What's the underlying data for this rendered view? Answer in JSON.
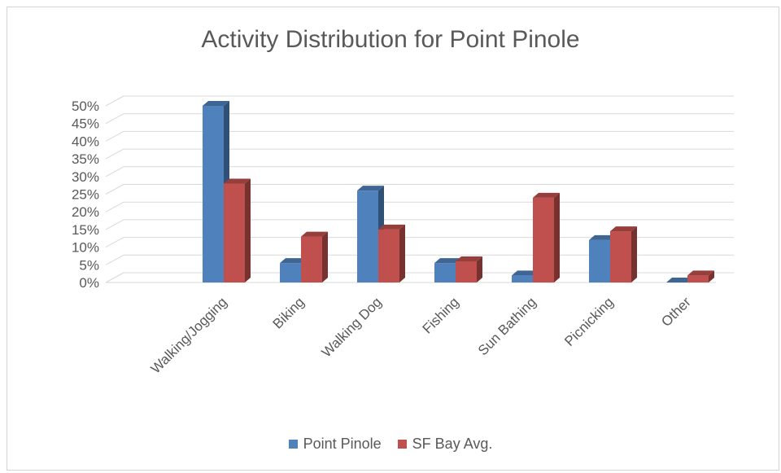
{
  "chart_data": {
    "type": "bar",
    "title": "Activity Distribution for Point Pinole",
    "categories": [
      "Walking/Jogging",
      "Biking",
      "Walking Dog",
      "Fishing",
      "Sun Bathing",
      "Picnicking",
      "Other"
    ],
    "series": [
      {
        "name": "Point Pinole",
        "values": [
          50,
          5.5,
          26,
          5.5,
          2,
          12,
          0
        ],
        "color": "#4f81bd"
      },
      {
        "name": "SF Bay Avg.",
        "values": [
          28,
          13,
          15,
          6,
          24,
          14.5,
          2
        ],
        "color": "#c0504d"
      }
    ],
    "yticks": [
      "0%",
      "5%",
      "10%",
      "15%",
      "20%",
      "25%",
      "30%",
      "35%",
      "40%",
      "45%",
      "50%"
    ],
    "ylim": [
      0,
      50
    ],
    "grid": true,
    "legend_position": "bottom"
  }
}
